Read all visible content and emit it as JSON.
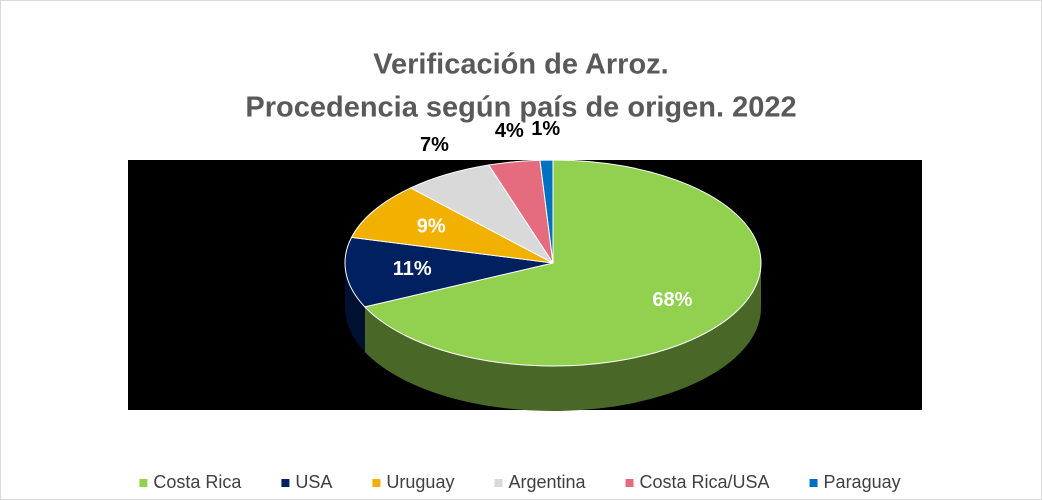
{
  "chart_data": {
    "type": "pie",
    "title": [
      "Verificación de Arroz.",
      "Procedencia según país de origen. 2022"
    ],
    "categories": [
      "Costa Rica",
      "USA",
      "Uruguay",
      "Argentina",
      "Costa Rica/USA",
      "Paraguay"
    ],
    "values": [
      68,
      11,
      9,
      7,
      4,
      1
    ],
    "value_labels": [
      "68%",
      "11%",
      "9%",
      "7%",
      "4%",
      "1%"
    ],
    "colors": [
      "#92d050",
      "#002060",
      "#f2b000",
      "#d9d9d9",
      "#e46c7e",
      "#0070c0"
    ],
    "legend": "bottom"
  }
}
